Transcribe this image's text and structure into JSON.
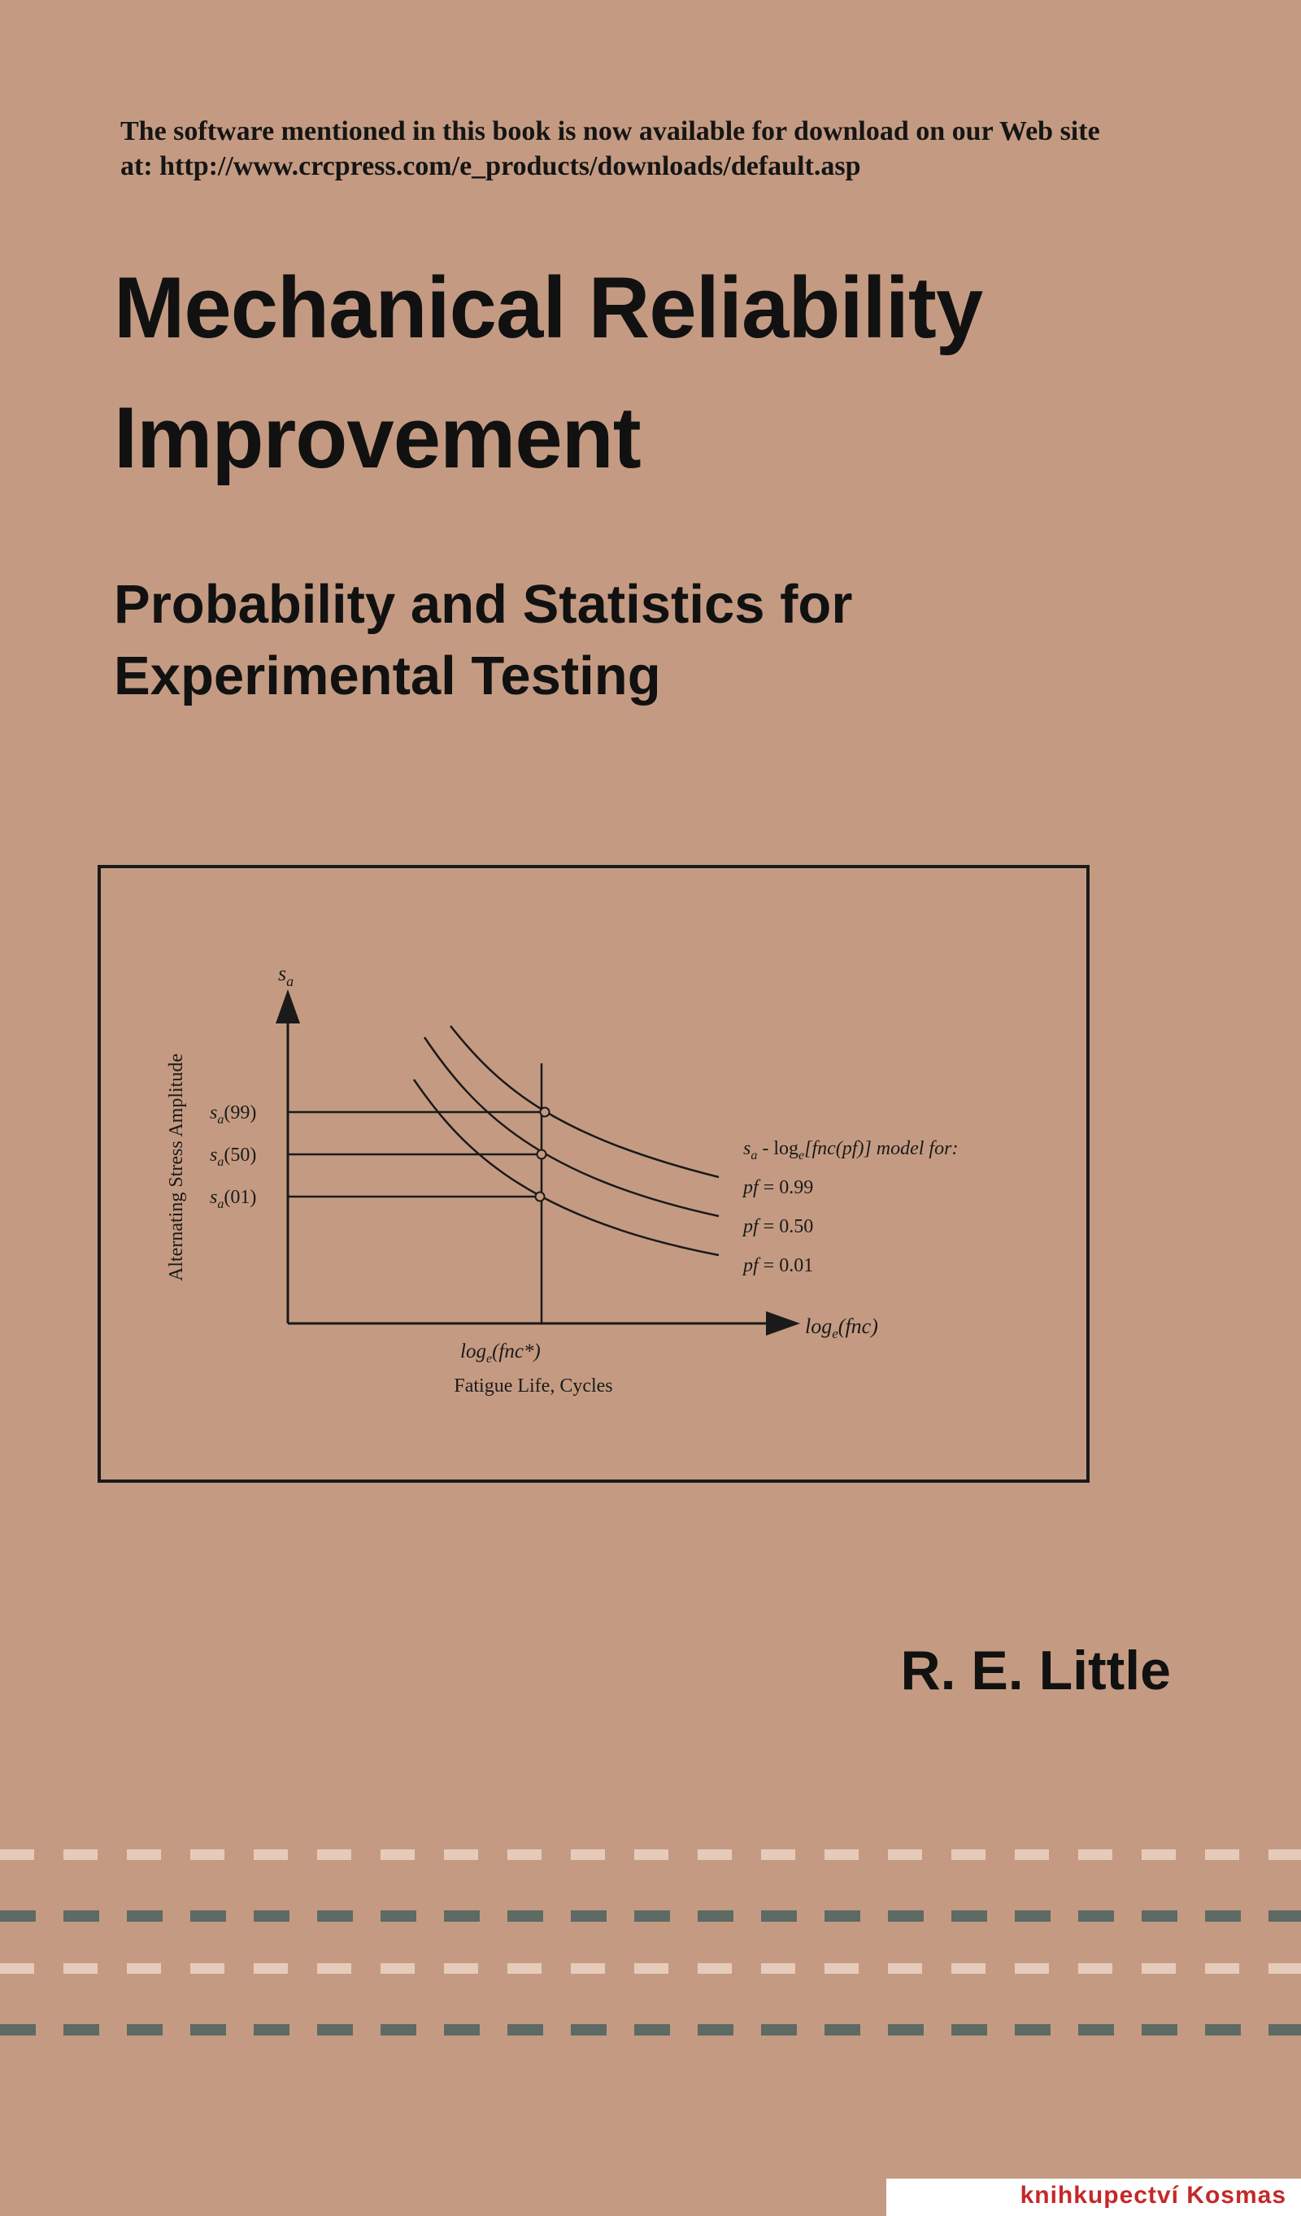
{
  "cover": {
    "notice_line1": "The software mentioned in this book is now available for download on our Web site",
    "notice_line2": "at: http://www.crcpress.com/e_products/downloads/default.asp",
    "title_line1": "Mechanical Reliability",
    "title_line2": "Improvement",
    "subtitle_line1": "Probability and Statistics for",
    "subtitle_line2": "Experimental Testing",
    "author": "R. E. Little"
  },
  "figure": {
    "y_axis_symbol": "s",
    "y_axis_symbol_sub": "a",
    "y_axis_label": "Alternating Stress Amplitude",
    "x_axis_symbol": "log",
    "x_axis_symbol_sub": "e",
    "x_axis_symbol_arg": "(fnc)",
    "x_marker_label": "log",
    "x_marker_sub": "e",
    "x_marker_arg": "(fnc*)",
    "x_axis_label": "Fatigue Life, Cycles",
    "y_ticks": [
      {
        "sym": "s",
        "sub": "a",
        "arg": "(99)"
      },
      {
        "sym": "s",
        "sub": "a",
        "arg": "(50)"
      },
      {
        "sym": "s",
        "sub": "a",
        "arg": "(01)"
      }
    ],
    "legend_title_pre": "s",
    "legend_title_sub": "a",
    "legend_title_mid": " - log",
    "legend_title_sub2": "e",
    "legend_title_post": "[fnc(pf)] model for:",
    "curves": [
      {
        "pf_label": "pf",
        "value": "= 0.99"
      },
      {
        "pf_label": "pf",
        "value": "= 0.50"
      },
      {
        "pf_label": "pf",
        "value": "= 0.01"
      }
    ]
  },
  "watermark": "knihkupectví Kosmas",
  "colors": {
    "background": "#c49b82",
    "ink": "#111111",
    "dash_light": "#e6cbbb",
    "dash_dark": "#5e6a64"
  }
}
